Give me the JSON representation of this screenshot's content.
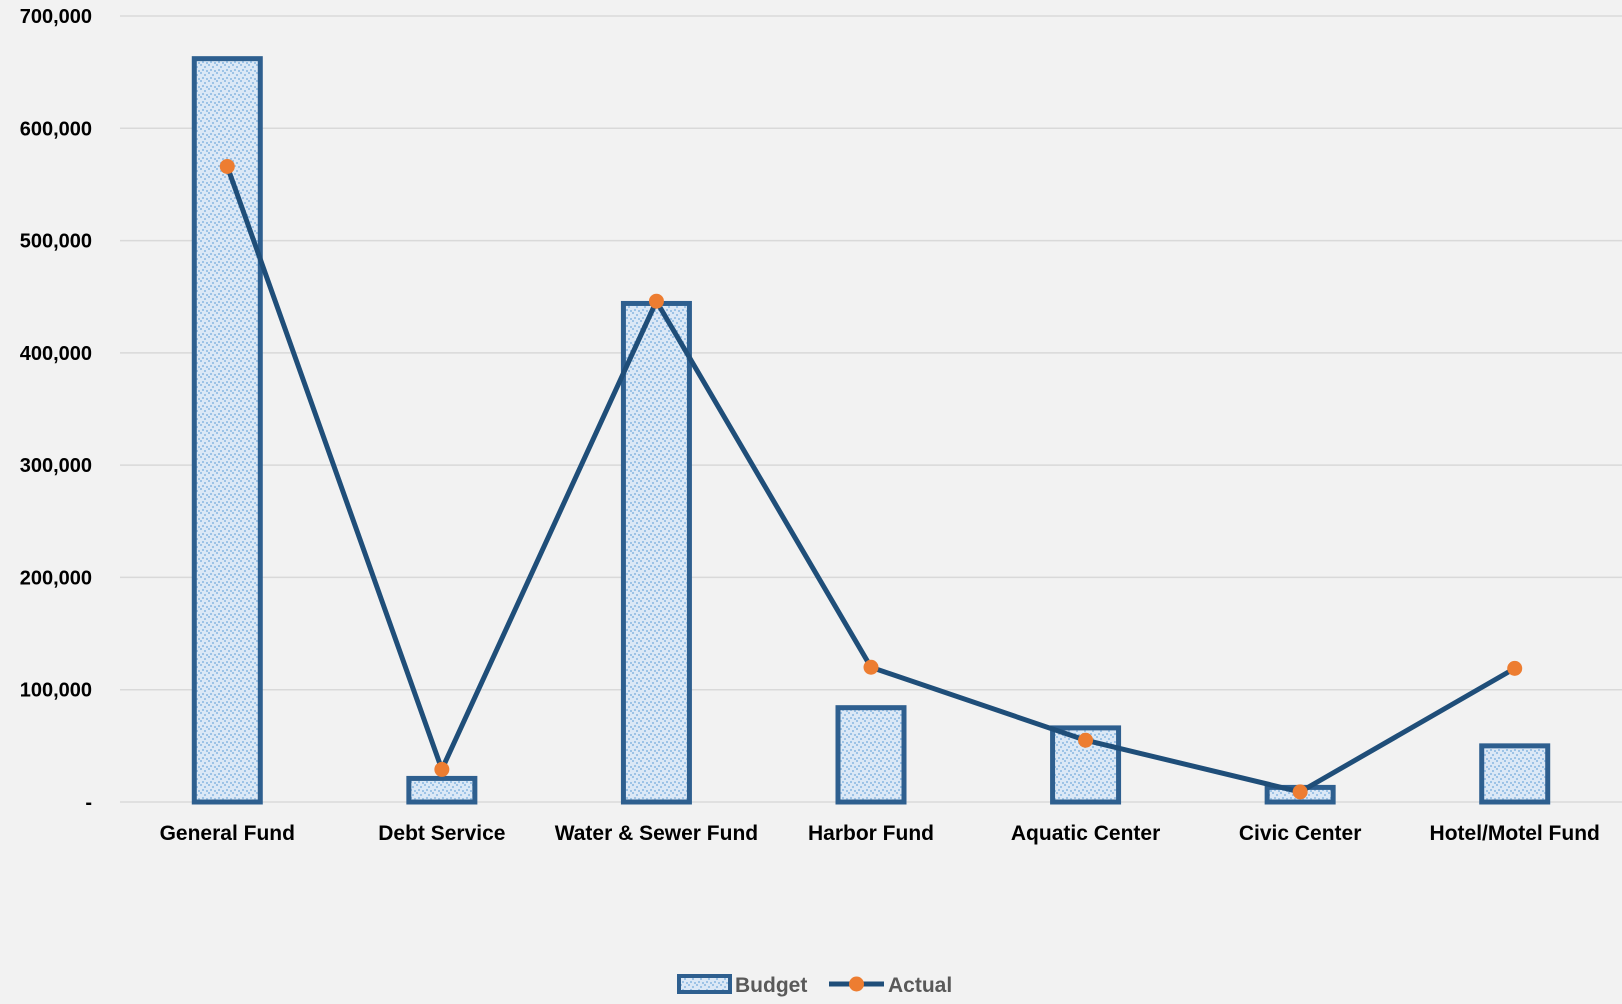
{
  "chart_data": {
    "type": "bar",
    "categories": [
      "General Fund",
      "Debt Service",
      "Water & Sewer Fund",
      "Harbor Fund",
      "Aquatic Center",
      "Civic Center",
      "Hotel/Motel Fund"
    ],
    "series": [
      {
        "name": "Budget",
        "type": "bar",
        "values": [
          662000,
          21000,
          444000,
          84000,
          66000,
          13000,
          50000
        ]
      },
      {
        "name": "Actual",
        "type": "line",
        "values": [
          566000,
          29000,
          446000,
          120000,
          55000,
          9000,
          119000
        ]
      }
    ],
    "yticks": [
      0,
      100000,
      200000,
      300000,
      400000,
      500000,
      600000,
      700000
    ],
    "ytick_labels": [
      "-",
      "100,000",
      "200,000",
      "300,000",
      "400,000",
      "500,000",
      "600,000",
      "700,000"
    ],
    "ylim": [
      0,
      700000
    ],
    "grid": true,
    "legend": "bottom-center",
    "title": "",
    "xlabel": "",
    "ylabel": "",
    "colors": {
      "bar_fill": "#dbe8f6",
      "bar_speckle": "#9dc3e6",
      "bar_border": "#2e5f8f",
      "line": "#1f4e79",
      "marker": "#ed7d31",
      "gridline": "#d9d9d9",
      "background": "#f2f2f2"
    }
  }
}
